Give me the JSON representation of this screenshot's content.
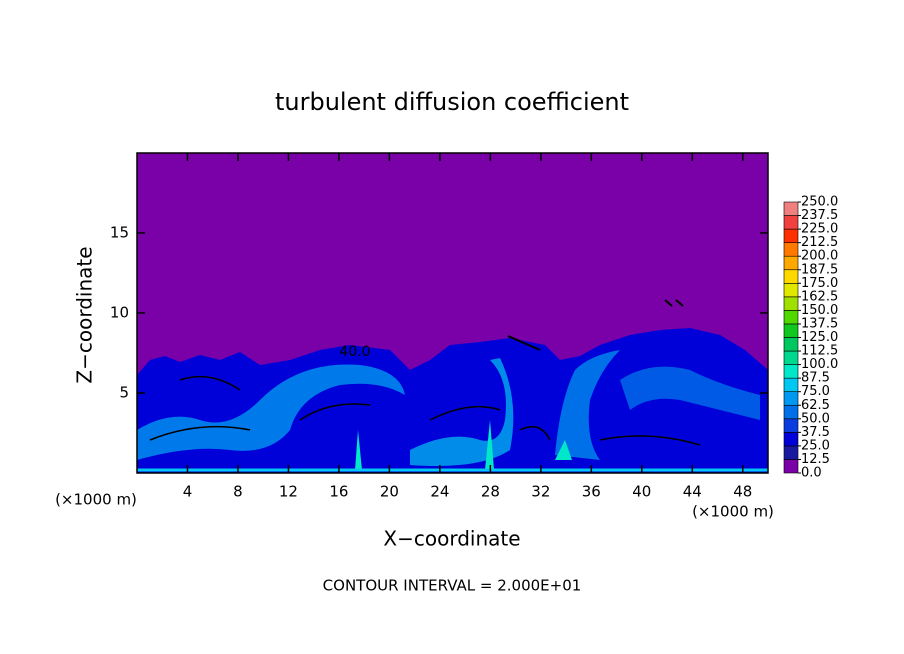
{
  "chart_data": {
    "type": "contour",
    "title": "turbulent diffusion coefficient",
    "x_label": "X−coordinate",
    "y_label": "Z−coordinate",
    "x_unit": "(×1000 m)",
    "y_unit": "(×1000 m)",
    "xlim": [
      0,
      50
    ],
    "ylim": [
      0,
      20
    ],
    "xticks": [
      4,
      8,
      12,
      16,
      20,
      24,
      28,
      32,
      36,
      40,
      44,
      48
    ],
    "yticks": [
      5,
      10,
      15
    ],
    "contour_label": "40.0",
    "footer": "CONTOUR INTERVAL = 2.000E+01",
    "colorbar": {
      "levels": [
        {
          "value": 0,
          "label": "0.0"
        },
        {
          "value": 12.5,
          "label": "12.5"
        },
        {
          "value": 25,
          "label": "25.0"
        },
        {
          "value": 37.5,
          "label": "37.5"
        },
        {
          "value": 50,
          "label": "50.0"
        },
        {
          "value": 62.5,
          "label": "62.5"
        },
        {
          "value": 75,
          "label": "75.0"
        },
        {
          "value": 87.5,
          "label": "87.5"
        },
        {
          "value": 100,
          "label": "100.0"
        },
        {
          "value": 112.5,
          "label": "112.5"
        },
        {
          "value": 125,
          "label": "125.0"
        },
        {
          "value": 137.5,
          "label": "137.5"
        },
        {
          "value": 150,
          "label": "150.0"
        },
        {
          "value": 162.5,
          "label": "162.5"
        },
        {
          "value": 175,
          "label": "175.0"
        },
        {
          "value": 187.5,
          "label": "187.5"
        },
        {
          "value": 200,
          "label": "200.0"
        },
        {
          "value": 212.5,
          "label": "212.5"
        },
        {
          "value": 225,
          "label": "225.0"
        },
        {
          "value": 237.5,
          "label": "237.5"
        },
        {
          "value": 250,
          "label": "250.0"
        }
      ],
      "colors": [
        "#7a00a8",
        "#1a1aa0",
        "#0000d8",
        "#0a3ce0",
        "#0070e8",
        "#0098f0",
        "#00c8f0",
        "#00e8c8",
        "#00d890",
        "#00c860",
        "#10c820",
        "#50d800",
        "#a0e000",
        "#e0e800",
        "#ffd800",
        "#ffa800",
        "#ff7800",
        "#ff3000",
        "#f04040",
        "#f08080"
      ]
    }
  }
}
